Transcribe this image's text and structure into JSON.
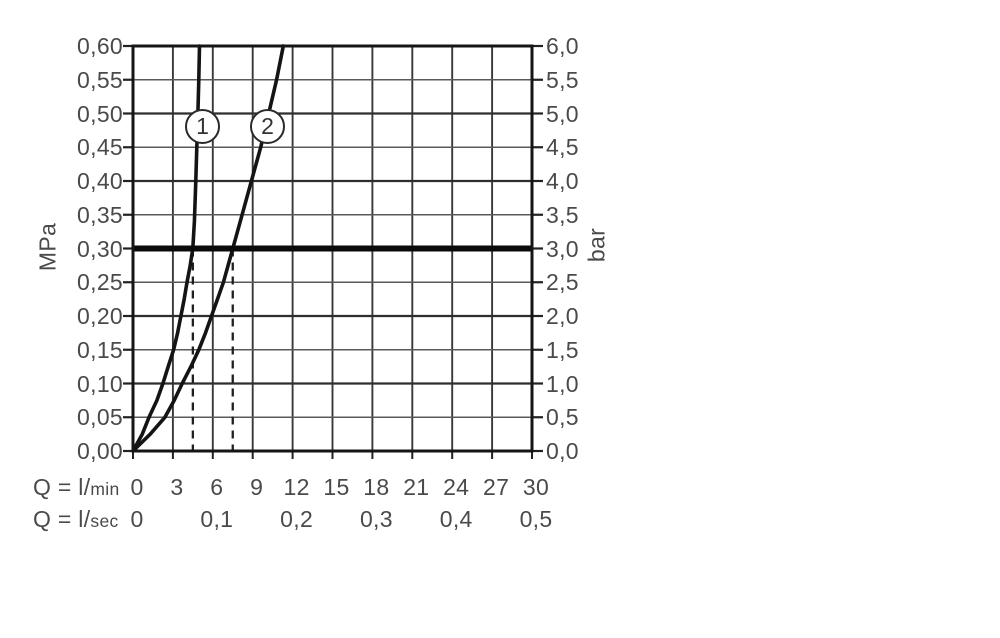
{
  "page": {
    "background": "#ffffff"
  },
  "colors": {
    "curve": "#141414",
    "grid_major_h": "#2e2e2e",
    "grid_minor_h": "#5a5a5a",
    "grid_vertical": "#383838",
    "border": "#151515",
    "reference_line": "#0a0a0a",
    "tick": "#222222",
    "dashed_guide": "#1f1f1f",
    "text": "#4a4a4a",
    "badge_fill": "#ffffff"
  },
  "chart_data": {
    "type": "line",
    "description": "Pressure vs flow rate diagram with two curves, reference line at 0,30 MPa / 3,0 bar and dashed guides at 4,5 and 7,5 l/min",
    "left_axis": {
      "label": "MPa",
      "min": 0,
      "max": 0.6,
      "step": 0.05,
      "tick_labels": [
        "0,00",
        "0,05",
        "0,10",
        "0,15",
        "0,20",
        "0,25",
        "0,30",
        "0,35",
        "0,40",
        "0,45",
        "0,50",
        "0,55",
        "0,60"
      ]
    },
    "right_axis": {
      "label": "bar",
      "min": 0,
      "max": 6,
      "step": 0.5,
      "tick_labels": [
        "0,0",
        "0,5",
        "1,0",
        "1,5",
        "2,0",
        "2,5",
        "3,0",
        "3,5",
        "4,0",
        "4,5",
        "5,0",
        "5,5",
        "6,0"
      ]
    },
    "x_axis_lmin": {
      "label_prefix": "Q = l/",
      "label_unit": "min",
      "min": 0,
      "max": 30,
      "step": 3,
      "tick_labels": [
        "0",
        "3",
        "6",
        "9",
        "12",
        "15",
        "18",
        "21",
        "24",
        "27",
        "30"
      ]
    },
    "x_axis_lsec": {
      "label_prefix": "Q = l/",
      "label_unit": "sec",
      "tick_labels": [
        "0",
        "0,1",
        "0,2",
        "0,3",
        "0,4",
        "0,5"
      ],
      "tick_positions_lmin": [
        0,
        6,
        12,
        18,
        24,
        30
      ]
    },
    "grid": true,
    "reference_line": {
      "mpa": 0.3,
      "bar": 3.0
    },
    "dashed_guides_lmin": [
      4.5,
      7.5
    ],
    "series": [
      {
        "name": "1",
        "points_q_lmin_p_mpa": [
          [
            0,
            0
          ],
          [
            0.7,
            0.025
          ],
          [
            1.2,
            0.05
          ],
          [
            1.8,
            0.075
          ],
          [
            2.25,
            0.1
          ],
          [
            2.65,
            0.125
          ],
          [
            3.05,
            0.15
          ],
          [
            3.35,
            0.175
          ],
          [
            3.6,
            0.2
          ],
          [
            3.85,
            0.225
          ],
          [
            4.06,
            0.25
          ],
          [
            4.3,
            0.275
          ],
          [
            4.5,
            0.3
          ],
          [
            4.62,
            0.34
          ],
          [
            4.72,
            0.4
          ],
          [
            4.8,
            0.45
          ],
          [
            4.88,
            0.5
          ],
          [
            4.95,
            0.55
          ],
          [
            5.0,
            0.6
          ]
        ]
      },
      {
        "name": "2",
        "points_q_lmin_p_mpa": [
          [
            0,
            0
          ],
          [
            1.3,
            0.025
          ],
          [
            2.4,
            0.05
          ],
          [
            3.1,
            0.075
          ],
          [
            3.7,
            0.1
          ],
          [
            4.35,
            0.125
          ],
          [
            4.95,
            0.15
          ],
          [
            5.45,
            0.175
          ],
          [
            5.9,
            0.2
          ],
          [
            6.35,
            0.225
          ],
          [
            6.8,
            0.25
          ],
          [
            7.15,
            0.275
          ],
          [
            7.5,
            0.3
          ],
          [
            8.2,
            0.35
          ],
          [
            8.9,
            0.4
          ],
          [
            9.6,
            0.45
          ],
          [
            10.2,
            0.5
          ],
          [
            10.8,
            0.55
          ],
          [
            11.3,
            0.6
          ]
        ]
      }
    ]
  }
}
